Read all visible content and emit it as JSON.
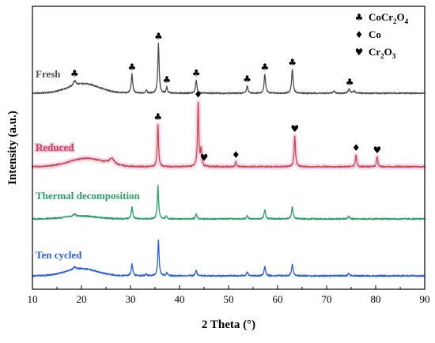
{
  "chart_data": {
    "type": "line",
    "xlabel": "2 Theta (°)",
    "ylabel": "Intensity (a.u.)",
    "xlim": [
      10,
      90
    ],
    "x_ticks": [
      10,
      20,
      30,
      40,
      50,
      60,
      70,
      80,
      90
    ],
    "y_ticks_visible": false,
    "grid": false,
    "legend_position": "top-right",
    "legend": [
      {
        "glyph": "♣",
        "label": "CoCr",
        "sub1": "2",
        "mid": "O",
        "sub2": "4"
      },
      {
        "glyph": "♦",
        "label": "Co",
        "sub1": "",
        "mid": "",
        "sub2": ""
      },
      {
        "glyph": "♥",
        "label": "Cr",
        "sub1": "2",
        "mid": "O",
        "sub2": "3"
      }
    ],
    "series": [
      {
        "name": "Fresh",
        "color": "#4d4d4d",
        "glow": "",
        "offset": 0.0,
        "hump": {
          "center": 20.5,
          "width": 4.5,
          "height": 0.04
        },
        "peaks": [
          {
            "x": 18.6,
            "h": 0.02,
            "w": 0.3
          },
          {
            "x": 30.3,
            "h": 0.08,
            "w": 0.18
          },
          {
            "x": 33.2,
            "h": 0.015,
            "w": 0.15
          },
          {
            "x": 35.7,
            "h": 0.21,
            "w": 0.16
          },
          {
            "x": 37.4,
            "h": 0.025,
            "w": 0.15
          },
          {
            "x": 43.4,
            "h": 0.055,
            "w": 0.17
          },
          {
            "x": 53.8,
            "h": 0.03,
            "w": 0.18
          },
          {
            "x": 57.4,
            "h": 0.08,
            "w": 0.18
          },
          {
            "x": 63.0,
            "h": 0.1,
            "w": 0.18
          },
          {
            "x": 71.5,
            "h": 0.01,
            "w": 0.2
          },
          {
            "x": 74.6,
            "h": 0.02,
            "w": 0.2
          },
          {
            "x": 75.6,
            "h": 0.01,
            "w": 0.2
          }
        ],
        "markers": [
          {
            "x": 18.6,
            "glyph": "♣"
          },
          {
            "x": 30.3,
            "glyph": "♣"
          },
          {
            "x": 35.7,
            "glyph": "♣"
          },
          {
            "x": 37.4,
            "glyph": "♣"
          },
          {
            "x": 43.4,
            "glyph": "♣"
          },
          {
            "x": 53.8,
            "glyph": "♣"
          },
          {
            "x": 57.4,
            "glyph": "♣"
          },
          {
            "x": 63.0,
            "glyph": "♣"
          },
          {
            "x": 74.7,
            "glyph": "♣"
          }
        ]
      },
      {
        "name": "Reduced",
        "color": "#c0504d",
        "glow": "#f5b3e0",
        "offset": 0.0,
        "hump": {
          "center": 21.0,
          "width": 5.0,
          "height": 0.035
        },
        "peaks": [
          {
            "x": 26.2,
            "h": 0.025,
            "w": 0.6
          },
          {
            "x": 35.6,
            "h": 0.18,
            "w": 0.15
          },
          {
            "x": 43.8,
            "h": 0.27,
            "w": 0.15
          },
          {
            "x": 44.4,
            "h": 0.07,
            "w": 0.15
          },
          {
            "x": 51.5,
            "h": 0.02,
            "w": 0.15
          },
          {
            "x": 63.5,
            "h": 0.13,
            "w": 0.16
          },
          {
            "x": 76.0,
            "h": 0.05,
            "w": 0.16
          },
          {
            "x": 80.3,
            "h": 0.04,
            "w": 0.16
          }
        ],
        "markers": [
          {
            "x": 35.6,
            "glyph": "♣"
          },
          {
            "x": 43.8,
            "glyph": "♦"
          },
          {
            "x": 45.0,
            "glyph": "♥"
          },
          {
            "x": 51.5,
            "glyph": "♦"
          },
          {
            "x": 63.5,
            "glyph": "♥"
          },
          {
            "x": 76.0,
            "glyph": "♦"
          },
          {
            "x": 80.3,
            "glyph": "♥"
          }
        ]
      },
      {
        "name": "Thermal decomposition",
        "color": "#2e9c6a",
        "glow": "",
        "offset": 0.0,
        "hump": {
          "center": 20.0,
          "width": 4.5,
          "height": 0.012
        },
        "peaks": [
          {
            "x": 18.6,
            "h": 0.01,
            "w": 0.3
          },
          {
            "x": 30.3,
            "h": 0.05,
            "w": 0.18
          },
          {
            "x": 35.6,
            "h": 0.14,
            "w": 0.16
          },
          {
            "x": 37.3,
            "h": 0.012,
            "w": 0.15
          },
          {
            "x": 43.4,
            "h": 0.02,
            "w": 0.17
          },
          {
            "x": 53.8,
            "h": 0.015,
            "w": 0.18
          },
          {
            "x": 57.4,
            "h": 0.04,
            "w": 0.18
          },
          {
            "x": 63.0,
            "h": 0.052,
            "w": 0.18
          },
          {
            "x": 74.5,
            "h": 0.01,
            "w": 0.2
          }
        ],
        "markers": []
      },
      {
        "name": "Ten cycled",
        "color": "#2b5fd9",
        "glow": "",
        "offset": 0.0,
        "hump": {
          "center": 20.0,
          "width": 4.5,
          "height": 0.03
        },
        "peaks": [
          {
            "x": 18.6,
            "h": 0.01,
            "w": 0.3
          },
          {
            "x": 30.3,
            "h": 0.05,
            "w": 0.18
          },
          {
            "x": 33.2,
            "h": 0.01,
            "w": 0.15
          },
          {
            "x": 35.7,
            "h": 0.15,
            "w": 0.16
          },
          {
            "x": 37.4,
            "h": 0.012,
            "w": 0.15
          },
          {
            "x": 43.4,
            "h": 0.025,
            "w": 0.17
          },
          {
            "x": 53.8,
            "h": 0.016,
            "w": 0.18
          },
          {
            "x": 57.4,
            "h": 0.04,
            "w": 0.18
          },
          {
            "x": 63.0,
            "h": 0.05,
            "w": 0.18
          },
          {
            "x": 74.5,
            "h": 0.01,
            "w": 0.2
          }
        ],
        "markers": []
      }
    ]
  }
}
